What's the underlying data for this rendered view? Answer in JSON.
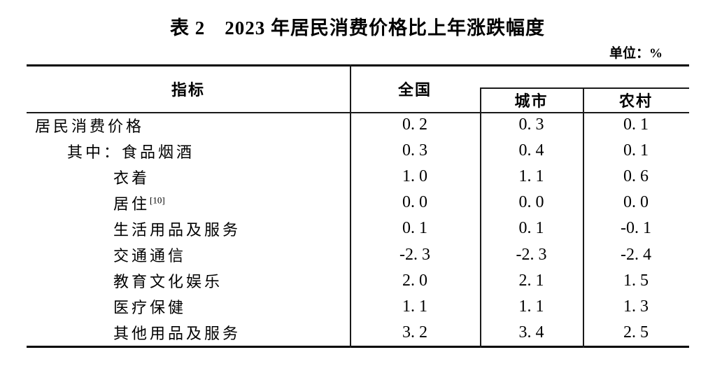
{
  "page": {
    "title": "表 2　2023 年居民消费价格比上年涨跌幅度",
    "unit_label": "单位：%"
  },
  "table": {
    "columns": {
      "indicator": "指标",
      "national": "全国",
      "urban": "城市",
      "rural": "农村"
    },
    "rows": [
      {
        "label": "居民消费价格",
        "indent": "0",
        "sup": "",
        "national": "0. 2",
        "urban": "0. 3",
        "rural": "0. 1"
      },
      {
        "label": "其中：食品烟酒",
        "indent": "1",
        "sup": "",
        "national": "0. 3",
        "urban": "0. 4",
        "rural": "0. 1"
      },
      {
        "label": "衣着",
        "indent": "2",
        "sup": "",
        "national": "1. 0",
        "urban": "1. 1",
        "rural": "0. 6"
      },
      {
        "label": "居住",
        "indent": "2",
        "sup": "[10]",
        "national": "0. 0",
        "urban": "0. 0",
        "rural": "0. 0"
      },
      {
        "label": "生活用品及服务",
        "indent": "2",
        "sup": "",
        "national": "0. 1",
        "urban": "0. 1",
        "rural": "-0. 1"
      },
      {
        "label": "交通通信",
        "indent": "2",
        "sup": "",
        "national": "-2. 3",
        "urban": "-2. 3",
        "rural": "-2. 4"
      },
      {
        "label": "教育文化娱乐",
        "indent": "2",
        "sup": "",
        "national": "2. 0",
        "urban": "2. 1",
        "rural": "1. 5"
      },
      {
        "label": "医疗保健",
        "indent": "2",
        "sup": "",
        "national": "1. 1",
        "urban": "1. 1",
        "rural": "1. 3"
      },
      {
        "label": "其他用品及服务",
        "indent": "2",
        "sup": "",
        "national": "3. 2",
        "urban": "3. 4",
        "rural": "2. 5"
      }
    ]
  },
  "chart_data": {
    "type": "table",
    "title": "表 2　2023 年居民消费价格比上年涨跌幅度",
    "unit": "%",
    "columns": [
      "指标",
      "全国",
      "城市",
      "农村"
    ],
    "rows": [
      [
        "居民消费价格",
        0.2,
        0.3,
        0.1
      ],
      [
        "其中：食品烟酒",
        0.3,
        0.4,
        0.1
      ],
      [
        "衣着",
        1.0,
        1.1,
        0.6
      ],
      [
        "居住[10]",
        0.0,
        0.0,
        0.0
      ],
      [
        "生活用品及服务",
        0.1,
        0.1,
        -0.1
      ],
      [
        "交通通信",
        -2.3,
        -2.3,
        -2.4
      ],
      [
        "教育文化娱乐",
        2.0,
        2.1,
        1.5
      ],
      [
        "医疗保健",
        1.1,
        1.1,
        1.3
      ],
      [
        "其他用品及服务",
        3.2,
        3.4,
        2.5
      ]
    ]
  }
}
